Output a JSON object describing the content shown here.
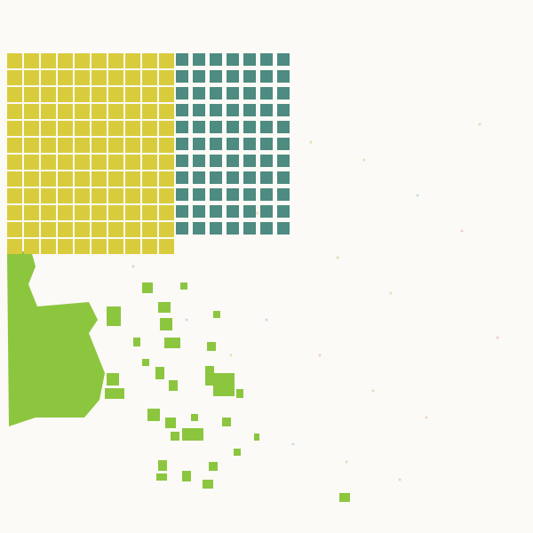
{
  "header": {
    "title": "",
    "subtitle": "",
    "caption": ""
  },
  "yellow_grid": {
    "color": "#d9cc3c",
    "rows": 12,
    "cols": 10,
    "labels": []
  },
  "teal_grid": {
    "color": "#4e8b80",
    "rows": 11,
    "cols": 7
  },
  "green_blobs": {
    "color": "#8cc63f"
  },
  "footer": {
    "line1": "",
    "line2": ""
  }
}
